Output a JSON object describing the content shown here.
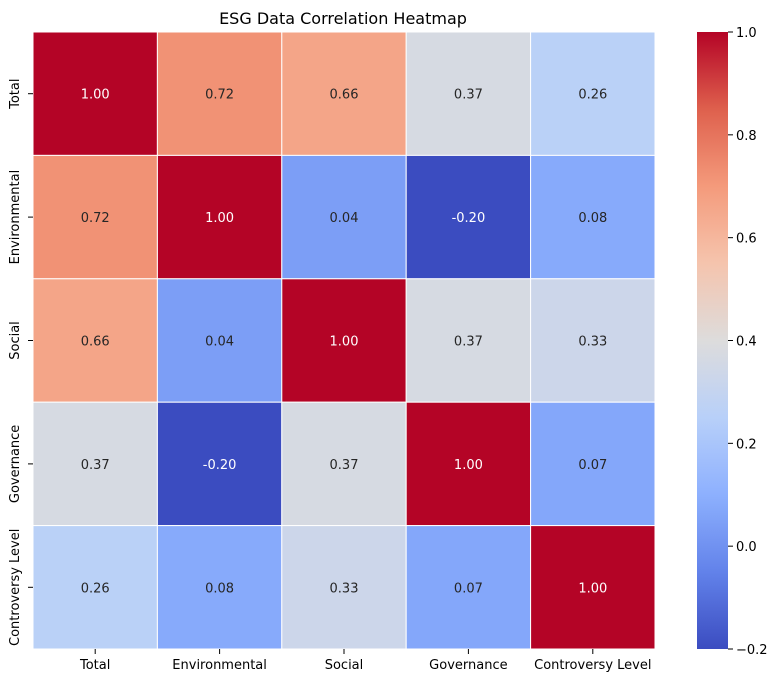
{
  "chart_data": {
    "type": "heatmap",
    "title": "ESG Data Correlation Heatmap",
    "xlabel": "",
    "ylabel": "",
    "x_categories": [
      "Total",
      "Environmental",
      "Social",
      "Governance",
      "Controversy Level"
    ],
    "y_categories": [
      "Total",
      "Environmental",
      "Social",
      "Governance",
      "Controversy Level"
    ],
    "values": [
      [
        1.0,
        0.72,
        0.66,
        0.37,
        0.26
      ],
      [
        0.72,
        1.0,
        0.04,
        -0.2,
        0.08
      ],
      [
        0.66,
        0.04,
        1.0,
        0.37,
        0.33
      ],
      [
        0.37,
        -0.2,
        0.37,
        1.0,
        0.07
      ],
      [
        0.26,
        0.08,
        0.33,
        0.07,
        1.0
      ]
    ],
    "value_format": "0.00",
    "colormap": "coolwarm",
    "vmin": -0.2,
    "vmax": 1.0,
    "colorbar_ticks": [
      1.0,
      0.8,
      0.6,
      0.4,
      0.2,
      0.0,
      -0.2
    ],
    "colorbar_tick_labels": [
      "1.0",
      "0.8",
      "0.6",
      "0.4",
      "0.2",
      "0.0",
      "−0.2"
    ],
    "cell_border_color": "#ffffff",
    "grid": false
  }
}
